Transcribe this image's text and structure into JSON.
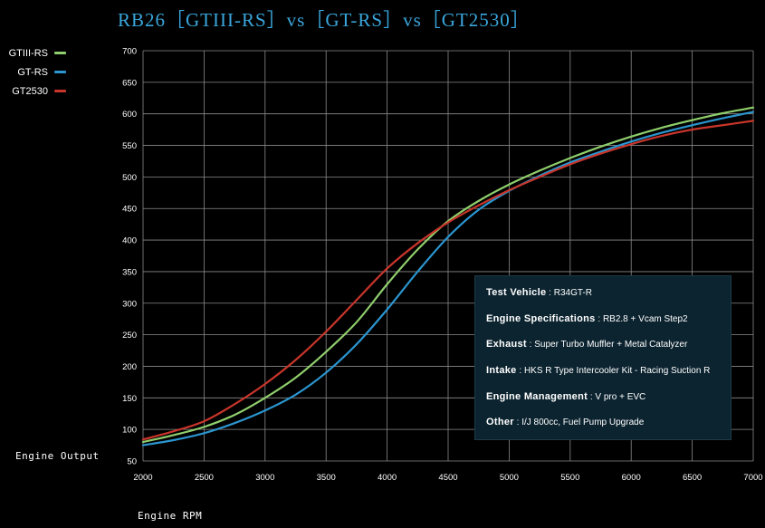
{
  "title": "RB26［GTIII-RS］vs［GT-RS］vs［GT2530］",
  "xlabel": "Engine RPM",
  "ylabel": "Engine Output",
  "colors": {
    "GTIII-RS": "#8fce6c",
    "GT-RS": "#2b95cf",
    "GT2530": "#c8352b",
    "grid": "#8a8a8a",
    "background": "#000000",
    "info_bg": "#0c2430"
  },
  "info": [
    {
      "key": "Test Vehicle",
      "sep": " : ",
      "value": "R34GT-R"
    },
    {
      "key": "Engine Specifications",
      "sep": " : ",
      "value": "RB2.8 + Vcam Step2"
    },
    {
      "key": "Exhaust",
      "sep": " : ",
      "value": "Super Turbo Muffler + Metal Catalyzer"
    },
    {
      "key": "Intake",
      "sep": " : ",
      "value": "HKS R Type Intercooler Kit - Racing Suction R"
    },
    {
      "key": "Engine Management",
      "sep": " : ",
      "value": "V pro + EVC"
    },
    {
      "key": "Other",
      "sep": " : ",
      "value": "I/J 800cc, Fuel Pump Upgrade"
    }
  ],
  "chart_data": {
    "type": "line",
    "xlim": [
      2000,
      7000
    ],
    "ylim": [
      50,
      700
    ],
    "xticks": [
      2000,
      2500,
      3000,
      3500,
      4000,
      4500,
      5000,
      5500,
      6000,
      6500,
      7000
    ],
    "yticks": [
      50,
      100,
      150,
      200,
      250,
      300,
      350,
      400,
      450,
      500,
      550,
      600,
      650,
      700
    ],
    "grid": true,
    "legend_position": "top-left",
    "series": [
      {
        "name": "GTIII-RS",
        "color": "#8fce6c",
        "x": [
          2000,
          2250,
          2500,
          2750,
          3000,
          3250,
          3500,
          3750,
          4000,
          4250,
          4500,
          4750,
          5000,
          5250,
          5500,
          5750,
          6000,
          6250,
          6500,
          6750,
          7000
        ],
        "y": [
          80,
          91,
          104,
          123,
          150,
          182,
          223,
          270,
          330,
          385,
          430,
          462,
          488,
          510,
          530,
          548,
          564,
          578,
          590,
          601,
          610
        ]
      },
      {
        "name": "GT-RS",
        "color": "#2b95cf",
        "x": [
          2000,
          2250,
          2500,
          2750,
          3000,
          3250,
          3500,
          3750,
          4000,
          4250,
          4500,
          4750,
          5000,
          5250,
          5500,
          5750,
          6000,
          6250,
          6500,
          6750,
          7000
        ],
        "y": [
          75,
          83,
          94,
          110,
          130,
          155,
          190,
          235,
          290,
          350,
          405,
          448,
          478,
          502,
          523,
          540,
          556,
          570,
          582,
          593,
          603
        ]
      },
      {
        "name": "GT2530",
        "color": "#c8352b",
        "x": [
          2000,
          2250,
          2500,
          2750,
          3000,
          3250,
          3500,
          3750,
          4000,
          4250,
          4500,
          4750,
          5000,
          5250,
          5500,
          5750,
          6000,
          6250,
          6500,
          6750,
          7000
        ],
        "y": [
          84,
          97,
          113,
          140,
          172,
          210,
          255,
          305,
          355,
          395,
          428,
          455,
          479,
          500,
          520,
          537,
          552,
          565,
          575,
          582,
          589
        ]
      }
    ]
  }
}
